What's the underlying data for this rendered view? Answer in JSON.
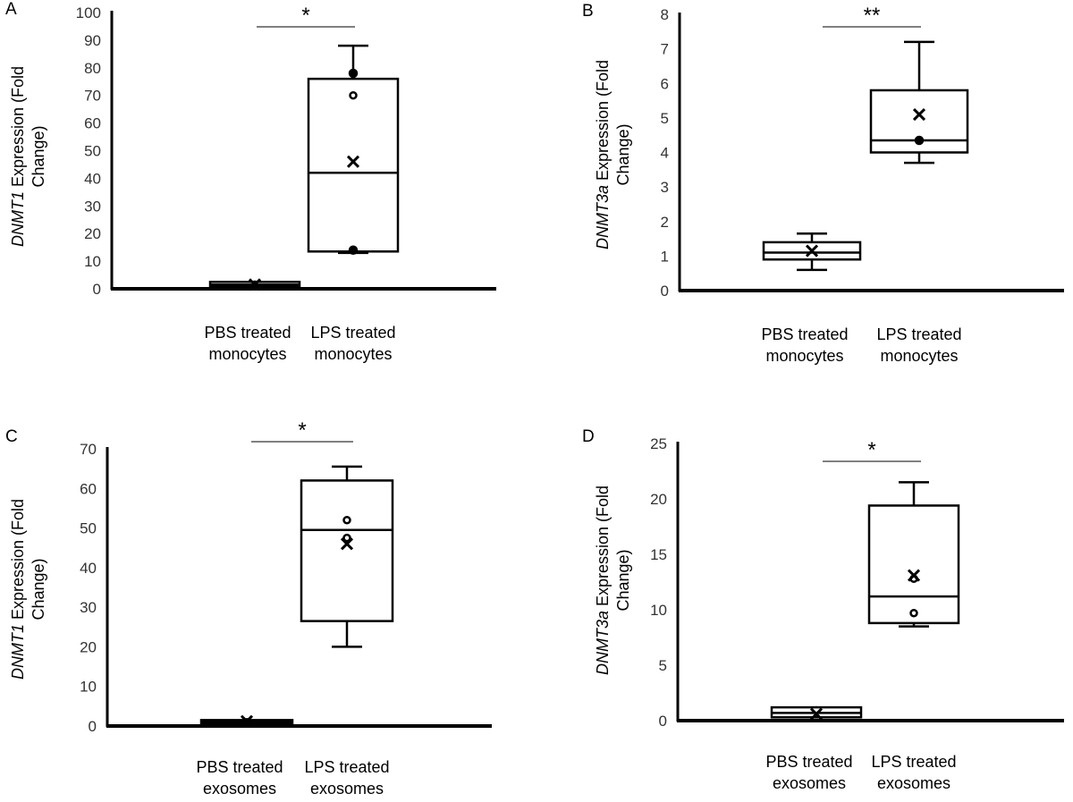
{
  "chart_data": [
    {
      "panel": "A",
      "type": "box",
      "ylabel_gene": "DNMT1",
      "ylabel_rest": " Expression (Fold Change)",
      "ylim": [
        0,
        100
      ],
      "yticks": [
        0,
        10,
        20,
        30,
        40,
        50,
        60,
        70,
        80,
        90,
        100
      ],
      "categories": [
        "PBS treated monocytes",
        "LPS treated monocytes"
      ],
      "category_lines": [
        [
          "PBS treated",
          "monocytes"
        ],
        [
          "LPS treated",
          "monocytes"
        ]
      ],
      "boxes": [
        {
          "whisker_min": 1,
          "q1": 1,
          "median": 1.5,
          "q3": 2.5,
          "whisker_max": 3,
          "mean": 1.5,
          "points_filled": [],
          "points_open": []
        },
        {
          "whisker_min": 13,
          "q1": 13.5,
          "median": 42,
          "q3": 76,
          "whisker_max": 88,
          "mean": 46,
          "points_filled": [
            78,
            14
          ],
          "points_open": [
            70
          ]
        }
      ],
      "significance": "*"
    },
    {
      "panel": "B",
      "type": "box",
      "ylabel_gene": "DNMT3a",
      "ylabel_rest": " Expression (Fold Change)",
      "ylim": [
        0,
        8
      ],
      "yticks": [
        0,
        1,
        2,
        3,
        4,
        5,
        6,
        7,
        8
      ],
      "categories": [
        "PBS treated monocytes",
        "LPS treated monocytes"
      ],
      "category_lines": [
        [
          "PBS treated",
          "monocytes"
        ],
        [
          "LPS treated",
          "monocytes"
        ]
      ],
      "boxes": [
        {
          "whisker_min": 0.6,
          "q1": 0.9,
          "median": 1.1,
          "q3": 1.4,
          "whisker_max": 1.65,
          "mean": 1.15,
          "points_filled": [],
          "points_open": []
        },
        {
          "whisker_min": 3.7,
          "q1": 4.0,
          "median": 4.35,
          "q3": 5.8,
          "whisker_max": 7.2,
          "mean": 5.1,
          "points_filled": [
            4.35
          ],
          "points_open": []
        }
      ],
      "significance": "**"
    },
    {
      "panel": "C",
      "type": "box",
      "ylabel_gene": "DNMT1",
      "ylabel_rest": " Expression (Fold Change)",
      "ylim": [
        0,
        70
      ],
      "yticks": [
        0,
        10,
        20,
        30,
        40,
        50,
        60,
        70
      ],
      "categories": [
        "PBS treated exosomes",
        "LPS treated exosomes"
      ],
      "category_lines": [
        [
          "PBS treated",
          "exosomes"
        ],
        [
          "LPS treated",
          "exosomes"
        ]
      ],
      "boxes": [
        {
          "whisker_min": 0.5,
          "q1": 0.5,
          "median": 1,
          "q3": 1.5,
          "whisker_max": 2,
          "mean": 1.2,
          "points_filled": [],
          "points_open": []
        },
        {
          "whisker_min": 20,
          "q1": 26.5,
          "median": 49.5,
          "q3": 62,
          "whisker_max": 65.5,
          "mean": 46,
          "points_filled": [],
          "points_open": [
            52,
            47.5
          ]
        }
      ],
      "significance": "*"
    },
    {
      "panel": "D",
      "type": "box",
      "ylabel_gene": "DNMT3a",
      "ylabel_rest": " Expression (Fold Change)",
      "ylim": [
        0,
        25
      ],
      "yticks": [
        0,
        5,
        10,
        15,
        20,
        25
      ],
      "categories": [
        "PBS treated exosomes",
        "LPS treated exosomes"
      ],
      "category_lines": [
        [
          "PBS treated",
          "exosomes"
        ],
        [
          "LPS treated",
          "exosomes"
        ]
      ],
      "boxes": [
        {
          "whisker_min": 0.3,
          "q1": 0.3,
          "median": 0.7,
          "q3": 1.2,
          "whisker_max": 1.3,
          "mean": 0.6,
          "points_filled": [],
          "points_open": []
        },
        {
          "whisker_min": 8.5,
          "q1": 8.8,
          "median": 11.2,
          "q3": 19.4,
          "whisker_max": 21.5,
          "mean": 13.1,
          "points_filled": [],
          "points_open": [
            12.8,
            9.7
          ]
        }
      ],
      "significance": "*"
    }
  ]
}
